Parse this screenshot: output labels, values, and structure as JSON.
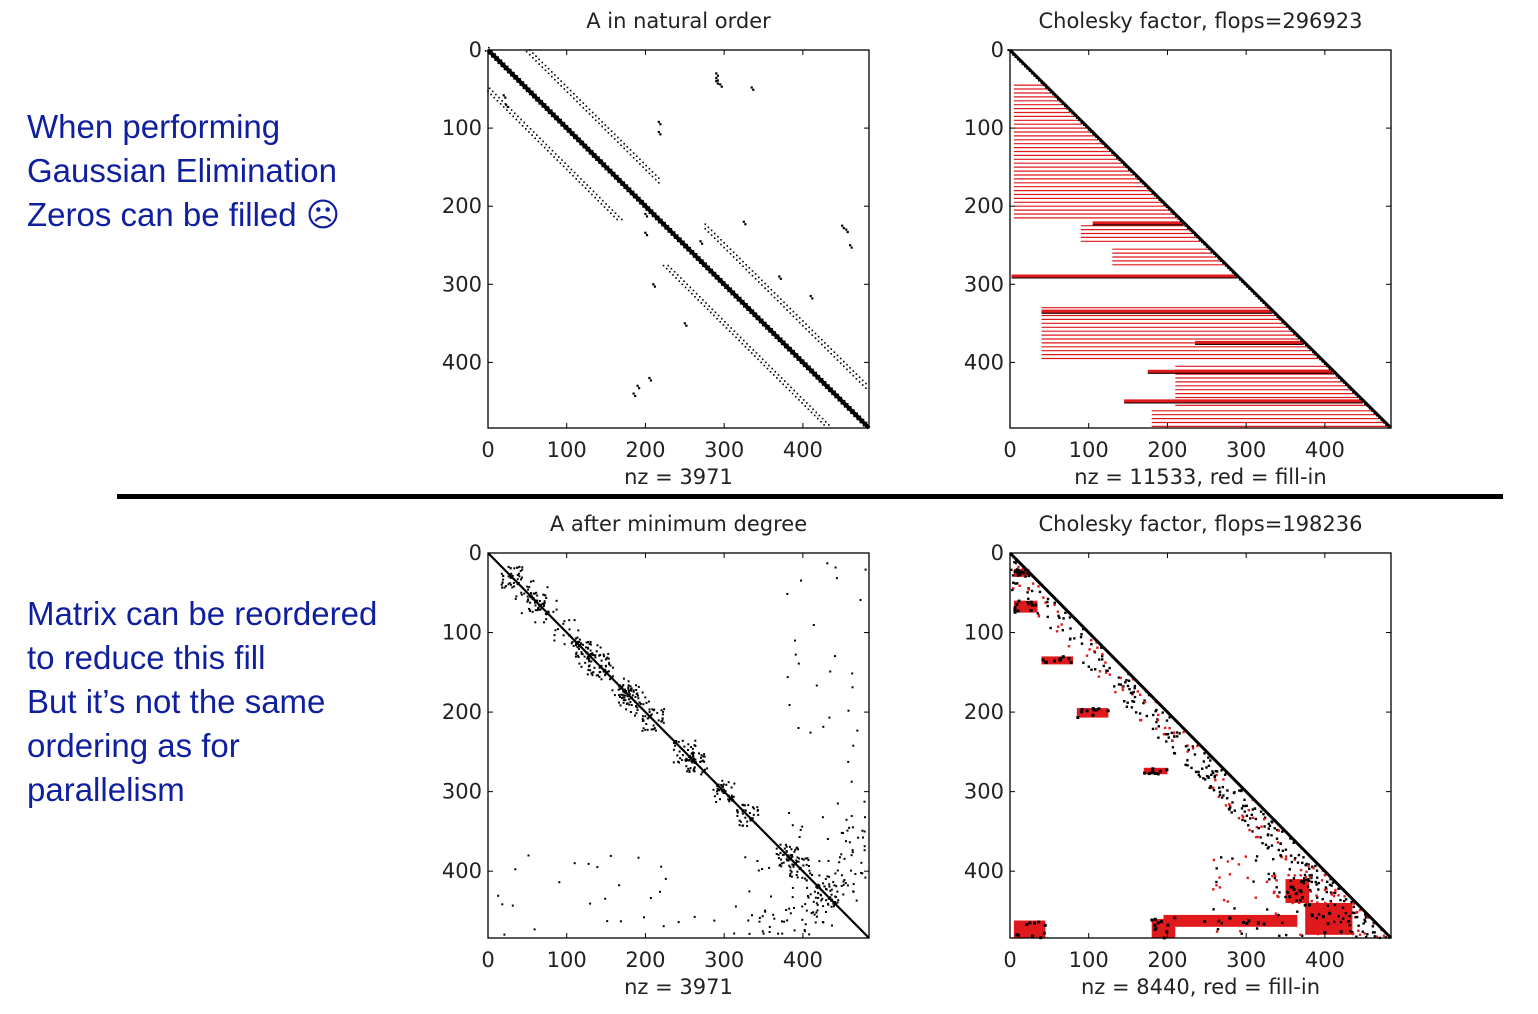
{
  "slide": {
    "text_top": [
      "When performing",
      "Gaussian Elimination",
      "Zeros can be filled ☹"
    ],
    "text_bottom": [
      "Matrix can be reordered",
      "to reduce this fill",
      "But it’s not the same",
      "ordering as for",
      "parallelism"
    ]
  },
  "colors": {
    "nonzero": "#000000",
    "fill_in": "#e0191c",
    "text": "#0f1f9e"
  },
  "chart_data": [
    {
      "type": "heatmap",
      "subtype": "sparsity-pattern",
      "title": "A in natural order",
      "xlabel": "nz = 3971",
      "ylabel": "",
      "nz": 3971,
      "n": 484,
      "xlim": [
        0,
        484
      ],
      "ylim": [
        0,
        484
      ],
      "y_inverted": true,
      "xticks": [
        0,
        100,
        200,
        300,
        400
      ],
      "yticks": [
        0,
        100,
        200,
        300,
        400
      ],
      "pattern": {
        "main_band_halfwidth": 2,
        "side_bands_offset": [
          47,
          53
        ],
        "side_bands": [
          [
            45,
            218
          ],
          [
            276,
            484
          ]
        ],
        "scatter": [
          [
            58,
            20
          ],
          [
            70,
            23
          ],
          [
            92,
            217
          ],
          [
            105,
            217
          ],
          [
            30,
            290
          ],
          [
            36,
            290
          ],
          [
            40,
            290
          ],
          [
            44,
            295
          ],
          [
            48,
            335
          ],
          [
            220,
            325
          ],
          [
            234,
            200
          ],
          [
            210,
            200
          ],
          [
            245,
            270
          ],
          [
            290,
            370
          ],
          [
            300,
            210
          ],
          [
            250,
            460
          ],
          [
            225,
            450
          ],
          [
            230,
            455
          ],
          [
            350,
            250
          ],
          [
            420,
            205
          ],
          [
            430,
            190
          ],
          [
            440,
            185
          ],
          [
            315,
            410
          ]
        ]
      }
    },
    {
      "type": "heatmap",
      "subtype": "sparsity-pattern",
      "title": "Cholesky factor, flops=296923",
      "xlabel": "nz = 11533,   red = fill-in",
      "ylabel": "",
      "nz": 11533,
      "flops": 296923,
      "n": 484,
      "xlim": [
        0,
        484
      ],
      "ylim": [
        0,
        484
      ],
      "y_inverted": true,
      "xticks": [
        0,
        100,
        200,
        300,
        400
      ],
      "yticks": [
        0,
        100,
        200,
        300,
        400
      ],
      "fill_rows": [
        {
          "from_col": 5,
          "rows": [
            45,
            220
          ]
        },
        {
          "from_col": 90,
          "rows": [
            225,
            250
          ]
        },
        {
          "from_col": 130,
          "rows": [
            255,
            276
          ]
        },
        {
          "from_col": 40,
          "rows": [
            330,
            400
          ]
        },
        {
          "from_col": 210,
          "rows": [
            405,
            460
          ]
        },
        {
          "from_col": 180,
          "rows": [
            462,
            484
          ]
        }
      ],
      "fill_heavy": [
        [
          2,
          290
        ],
        [
          40,
          335
        ],
        [
          105,
          222
        ],
        [
          175,
          412
        ],
        [
          145,
          450
        ],
        [
          235,
          375
        ]
      ]
    },
    {
      "type": "heatmap",
      "subtype": "sparsity-pattern",
      "title": "A after minimum degree",
      "xlabel": "nz = 3971",
      "ylabel": "",
      "nz": 3971,
      "n": 484,
      "xlim": [
        0,
        484
      ],
      "ylim": [
        0,
        484
      ],
      "y_inverted": true,
      "xticks": [
        0,
        100,
        200,
        300,
        400
      ],
      "yticks": [
        0,
        100,
        200,
        300,
        400
      ],
      "clusters": [
        [
          30,
          30
        ],
        [
          60,
          60
        ],
        [
          120,
          120
        ],
        [
          140,
          140
        ],
        [
          180,
          180
        ],
        [
          210,
          210
        ],
        [
          250,
          250
        ],
        [
          265,
          265
        ],
        [
          300,
          300
        ],
        [
          330,
          330
        ],
        [
          380,
          380
        ],
        [
          395,
          395
        ],
        [
          430,
          430
        ]
      ]
    },
    {
      "type": "heatmap",
      "subtype": "sparsity-pattern",
      "title": "Cholesky factor, flops=198236",
      "xlabel": "nz = 8440,   red = fill-in",
      "ylabel": "",
      "nz": 8440,
      "flops": 198236,
      "n": 484,
      "xlim": [
        0,
        484
      ],
      "ylim": [
        0,
        484
      ],
      "y_inverted": true,
      "xticks": [
        0,
        100,
        200,
        300,
        400
      ],
      "yticks": [
        0,
        100,
        200,
        300,
        400
      ],
      "fill_blocks": [
        [
          5,
          20,
          20,
          10
        ],
        [
          5,
          60,
          30,
          15
        ],
        [
          40,
          130,
          40,
          10
        ],
        [
          85,
          195,
          40,
          12
        ],
        [
          170,
          270,
          30,
          8
        ],
        [
          350,
          410,
          30,
          30
        ],
        [
          375,
          440,
          60,
          40
        ],
        [
          195,
          455,
          170,
          15
        ],
        [
          5,
          462,
          40,
          22
        ],
        [
          180,
          460,
          30,
          24
        ]
      ]
    }
  ]
}
